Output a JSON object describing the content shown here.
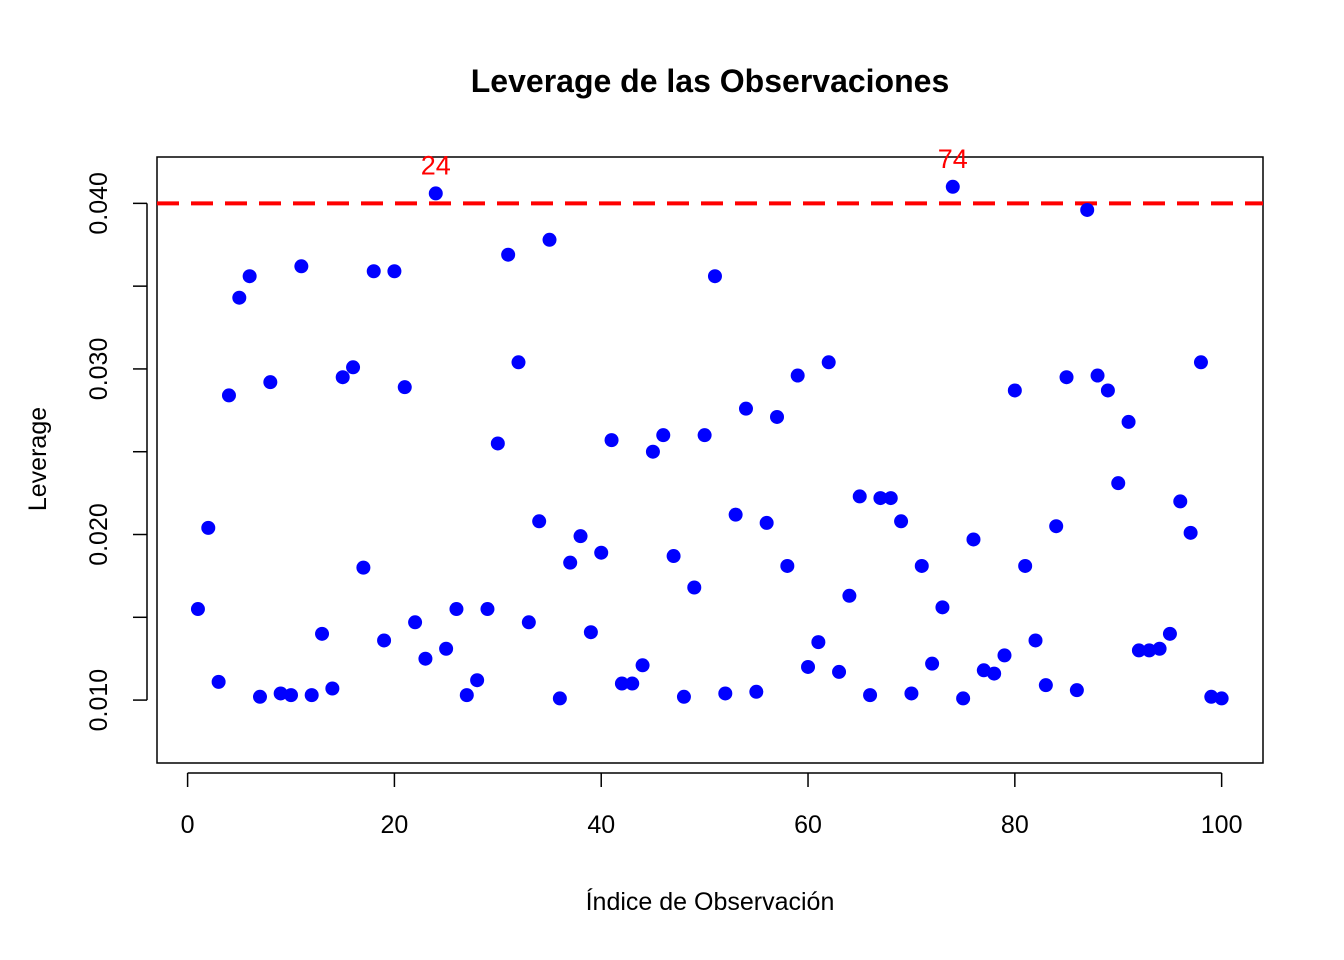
{
  "chart_data": {
    "type": "scatter",
    "title": "Leverage de las Observaciones",
    "xlabel": "Índice de Observación",
    "ylabel": "Leverage",
    "xlim": [
      -2.96,
      104
    ],
    "ylim": [
      0.0062,
      0.0428
    ],
    "x_ticks": [
      0,
      20,
      40,
      60,
      80,
      100
    ],
    "y_ticks": [
      0.01,
      0.015,
      0.02,
      0.025,
      0.03,
      0.035,
      0.04
    ],
    "y_tick_labels": [
      "0.010",
      "",
      "0.020",
      "",
      "0.030",
      "",
      "0.040"
    ],
    "grid": false,
    "point_color": "#0000FF",
    "threshold": {
      "value": 0.04,
      "color": "#FF0000",
      "style": "dashed"
    },
    "annotations": [
      {
        "label": "24",
        "x": 24,
        "y": 0.0406,
        "color": "#FF0000"
      },
      {
        "label": "74",
        "x": 74,
        "y": 0.041,
        "color": "#FF0000"
      }
    ],
    "x": [
      1,
      2,
      3,
      4,
      5,
      6,
      7,
      8,
      9,
      10,
      11,
      12,
      13,
      14,
      15,
      16,
      17,
      18,
      19,
      20,
      21,
      22,
      23,
      24,
      25,
      26,
      27,
      28,
      29,
      30,
      31,
      32,
      33,
      34,
      35,
      36,
      37,
      38,
      39,
      40,
      41,
      42,
      43,
      44,
      45,
      46,
      47,
      48,
      49,
      50,
      51,
      52,
      53,
      54,
      55,
      56,
      57,
      58,
      59,
      60,
      61,
      62,
      63,
      64,
      65,
      66,
      67,
      68,
      69,
      70,
      71,
      72,
      73,
      74,
      75,
      76,
      77,
      78,
      79,
      80,
      81,
      82,
      83,
      84,
      85,
      86,
      87,
      88,
      89,
      90,
      91,
      92,
      93,
      94,
      95,
      96,
      97,
      98,
      99,
      100
    ],
    "y": [
      0.0155,
      0.0204,
      0.0111,
      0.0284,
      0.0343,
      0.0356,
      0.0102,
      0.0292,
      0.0104,
      0.0103,
      0.0362,
      0.0103,
      0.014,
      0.0107,
      0.0295,
      0.0301,
      0.018,
      0.0359,
      0.0136,
      0.0359,
      0.0289,
      0.0147,
      0.0125,
      0.0406,
      0.0131,
      0.0155,
      0.0103,
      0.0112,
      0.0155,
      0.0255,
      0.0369,
      0.0304,
      0.0147,
      0.0208,
      0.0378,
      0.0101,
      0.0183,
      0.0199,
      0.0141,
      0.0189,
      0.0257,
      0.011,
      0.011,
      0.0121,
      0.025,
      0.026,
      0.0187,
      0.0102,
      0.0168,
      0.026,
      0.0356,
      0.0104,
      0.0212,
      0.0276,
      0.0105,
      0.0207,
      0.0271,
      0.0181,
      0.0296,
      0.012,
      0.0135,
      0.0304,
      0.0117,
      0.0163,
      0.0223,
      0.0103,
      0.0222,
      0.0222,
      0.0208,
      0.0104,
      0.0181,
      0.0122,
      0.0156,
      0.041,
      0.0101,
      0.0197,
      0.0118,
      0.0116,
      0.0127,
      0.0287,
      0.0181,
      0.0136,
      0.0109,
      0.0205,
      0.0295,
      0.0106,
      0.0396,
      0.0296,
      0.0287,
      0.0231,
      0.0268,
      0.013,
      0.013,
      0.0131,
      0.014,
      0.022,
      0.0201,
      0.0304,
      0.0102,
      0.0101
    ]
  }
}
